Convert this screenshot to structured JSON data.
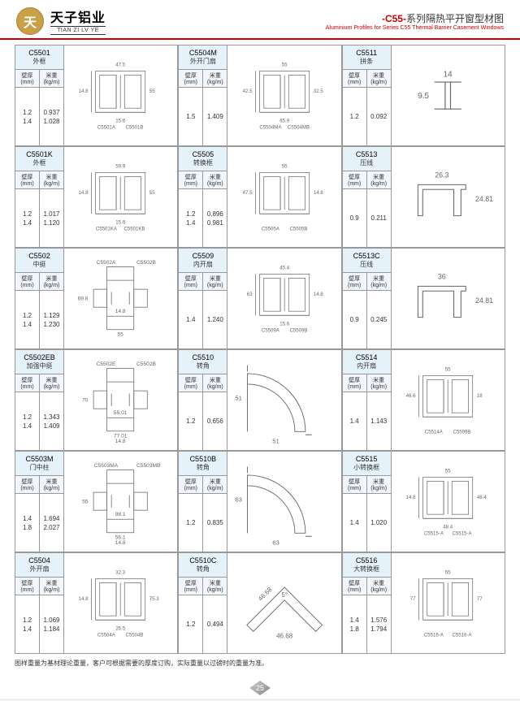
{
  "header": {
    "brand_cn": "天子铝业",
    "brand_en": "TIAN ZI LV YE",
    "logo_glyph": "天",
    "title_series": "-C55-",
    "title_rest": "系列隔热平开窗型材图",
    "title_en": "Aluminium Profiles for Series C55 Thermal Barrier Casement Windows"
  },
  "columns": {
    "thickness": "壁厚(mm)",
    "weight": "米重(kg/m)"
  },
  "footnote": "图样重量为基材理论重量，客户可根据需要的厚度订购，实际重量以过磅时的重量为准。",
  "page_num": "25",
  "cells": [
    {
      "code": "C5501",
      "name": "外框",
      "th": [
        "1.2",
        "1.4"
      ],
      "wt": [
        "0.937",
        "1.028"
      ],
      "dims": [
        "47.5",
        "14.8",
        "55",
        "15.6"
      ],
      "labels": [
        "C5501A",
        "C5501B"
      ],
      "shape": "frame"
    },
    {
      "code": "C5504M",
      "name": "外开门扇",
      "th": [
        "1.5"
      ],
      "wt": [
        "1.409"
      ],
      "dims": [
        "55",
        "42.5",
        "32.5",
        "65.9"
      ],
      "labels": [
        "C5504MA",
        "C5504MB"
      ],
      "shape": "frame"
    },
    {
      "code": "C5511",
      "name": "拼条",
      "th": [
        "1.2"
      ],
      "wt": [
        "0.092"
      ],
      "dims": [
        "14",
        "9.5"
      ],
      "labels": [],
      "shape": "strip"
    },
    {
      "code": "C5501K",
      "name": "外框",
      "th": [
        "1.2",
        "1.4"
      ],
      "wt": [
        "1.017",
        "1.120"
      ],
      "dims": [
        "59.9",
        "14.8",
        "55",
        "15.6"
      ],
      "labels": [
        "C5501KA",
        "C5501KB"
      ],
      "shape": "frame"
    },
    {
      "code": "C5505",
      "name": "转换框",
      "th": [
        "1.2",
        "1.4"
      ],
      "wt": [
        "0.896",
        "0.981"
      ],
      "dims": [
        "55",
        "47.5",
        "14.8"
      ],
      "labels": [
        "C5505A",
        "C5505B"
      ],
      "shape": "frame"
    },
    {
      "code": "C5513",
      "name": "压线",
      "th": [
        "0.9"
      ],
      "wt": [
        "0.211"
      ],
      "dims": [
        "26.3",
        "24.81"
      ],
      "labels": [],
      "shape": "press"
    },
    {
      "code": "C5502",
      "name": "中挺",
      "th": [
        "1.2",
        "1.4"
      ],
      "wt": [
        "1.129",
        "1.230"
      ],
      "dims": [
        "69.8",
        "14.8",
        "55"
      ],
      "labels": [
        "C5502A",
        "C5502B"
      ],
      "shape": "mullion"
    },
    {
      "code": "C5509",
      "name": "内开扇",
      "th": [
        "1.4"
      ],
      "wt": [
        "1.240"
      ],
      "dims": [
        "45.4",
        "63",
        "14.8",
        "15.6"
      ],
      "labels": [
        "C5509A",
        "C5509B"
      ],
      "shape": "frame"
    },
    {
      "code": "C5513C",
      "name": "压线",
      "th": [
        "0.9"
      ],
      "wt": [
        "0.245"
      ],
      "dims": [
        "36",
        "24.81"
      ],
      "labels": [],
      "shape": "press"
    },
    {
      "code": "C5502EB",
      "name": "加强中挺",
      "th": [
        "1.2",
        "1.4"
      ],
      "wt": [
        "1.343",
        "1.409"
      ],
      "dims": [
        "70",
        "55.01",
        "77.01",
        "14.8"
      ],
      "labels": [
        "C5502E",
        "C5502B"
      ],
      "shape": "mullion"
    },
    {
      "code": "C5510",
      "name": "转角",
      "th": [
        "1.2"
      ],
      "wt": [
        "0.656"
      ],
      "dims": [
        "51",
        "51"
      ],
      "labels": [],
      "shape": "corner90"
    },
    {
      "code": "C5514",
      "name": "内开扇",
      "th": [
        "1.4"
      ],
      "wt": [
        "1.143"
      ],
      "dims": [
        "55",
        "46.6",
        "18"
      ],
      "labels": [
        "C5514A",
        "C5509B"
      ],
      "shape": "frame"
    },
    {
      "code": "C5503M",
      "name": "门中柱",
      "th": [
        "1.4",
        "1.8"
      ],
      "wt": [
        "1.694",
        "2.027"
      ],
      "dims": [
        "55",
        "98.1",
        "56.1",
        "14.8"
      ],
      "labels": [
        "C5503MA",
        "C5503MB"
      ],
      "shape": "mullion"
    },
    {
      "code": "C5510B",
      "name": "转角",
      "th": [
        "1.2"
      ],
      "wt": [
        "0.835"
      ],
      "dims": [
        "63",
        "63"
      ],
      "labels": [],
      "shape": "corner90"
    },
    {
      "code": "C5515",
      "name": "小转换框",
      "th": [
        "1.4"
      ],
      "wt": [
        "1.020"
      ],
      "dims": [
        "55",
        "14.8",
        "48.4",
        "48.4"
      ],
      "labels": [
        "C5515-A",
        "C5515-A"
      ],
      "shape": "frame"
    },
    {
      "code": "C5504",
      "name": "外开扇",
      "th": [
        "1.2",
        "1.4"
      ],
      "wt": [
        "1.069",
        "1.184"
      ],
      "dims": [
        "32.3",
        "14.8",
        "75.3",
        "25.5"
      ],
      "labels": [
        "C5504A",
        "C5504B"
      ],
      "shape": "frame"
    },
    {
      "code": "C5510C",
      "name": "转角",
      "th": [
        "1.2"
      ],
      "wt": [
        "0.494"
      ],
      "dims": [
        "46.68",
        "46.68",
        "5°"
      ],
      "labels": [],
      "shape": "corner45"
    },
    {
      "code": "C5516",
      "name": "大转换框",
      "th": [
        "1.4",
        "1.8"
      ],
      "wt": [
        "1.576",
        "1.794"
      ],
      "dims": [
        "55",
        "77",
        "77"
      ],
      "labels": [
        "C5516-A",
        "C5516-A"
      ],
      "shape": "frame"
    }
  ]
}
